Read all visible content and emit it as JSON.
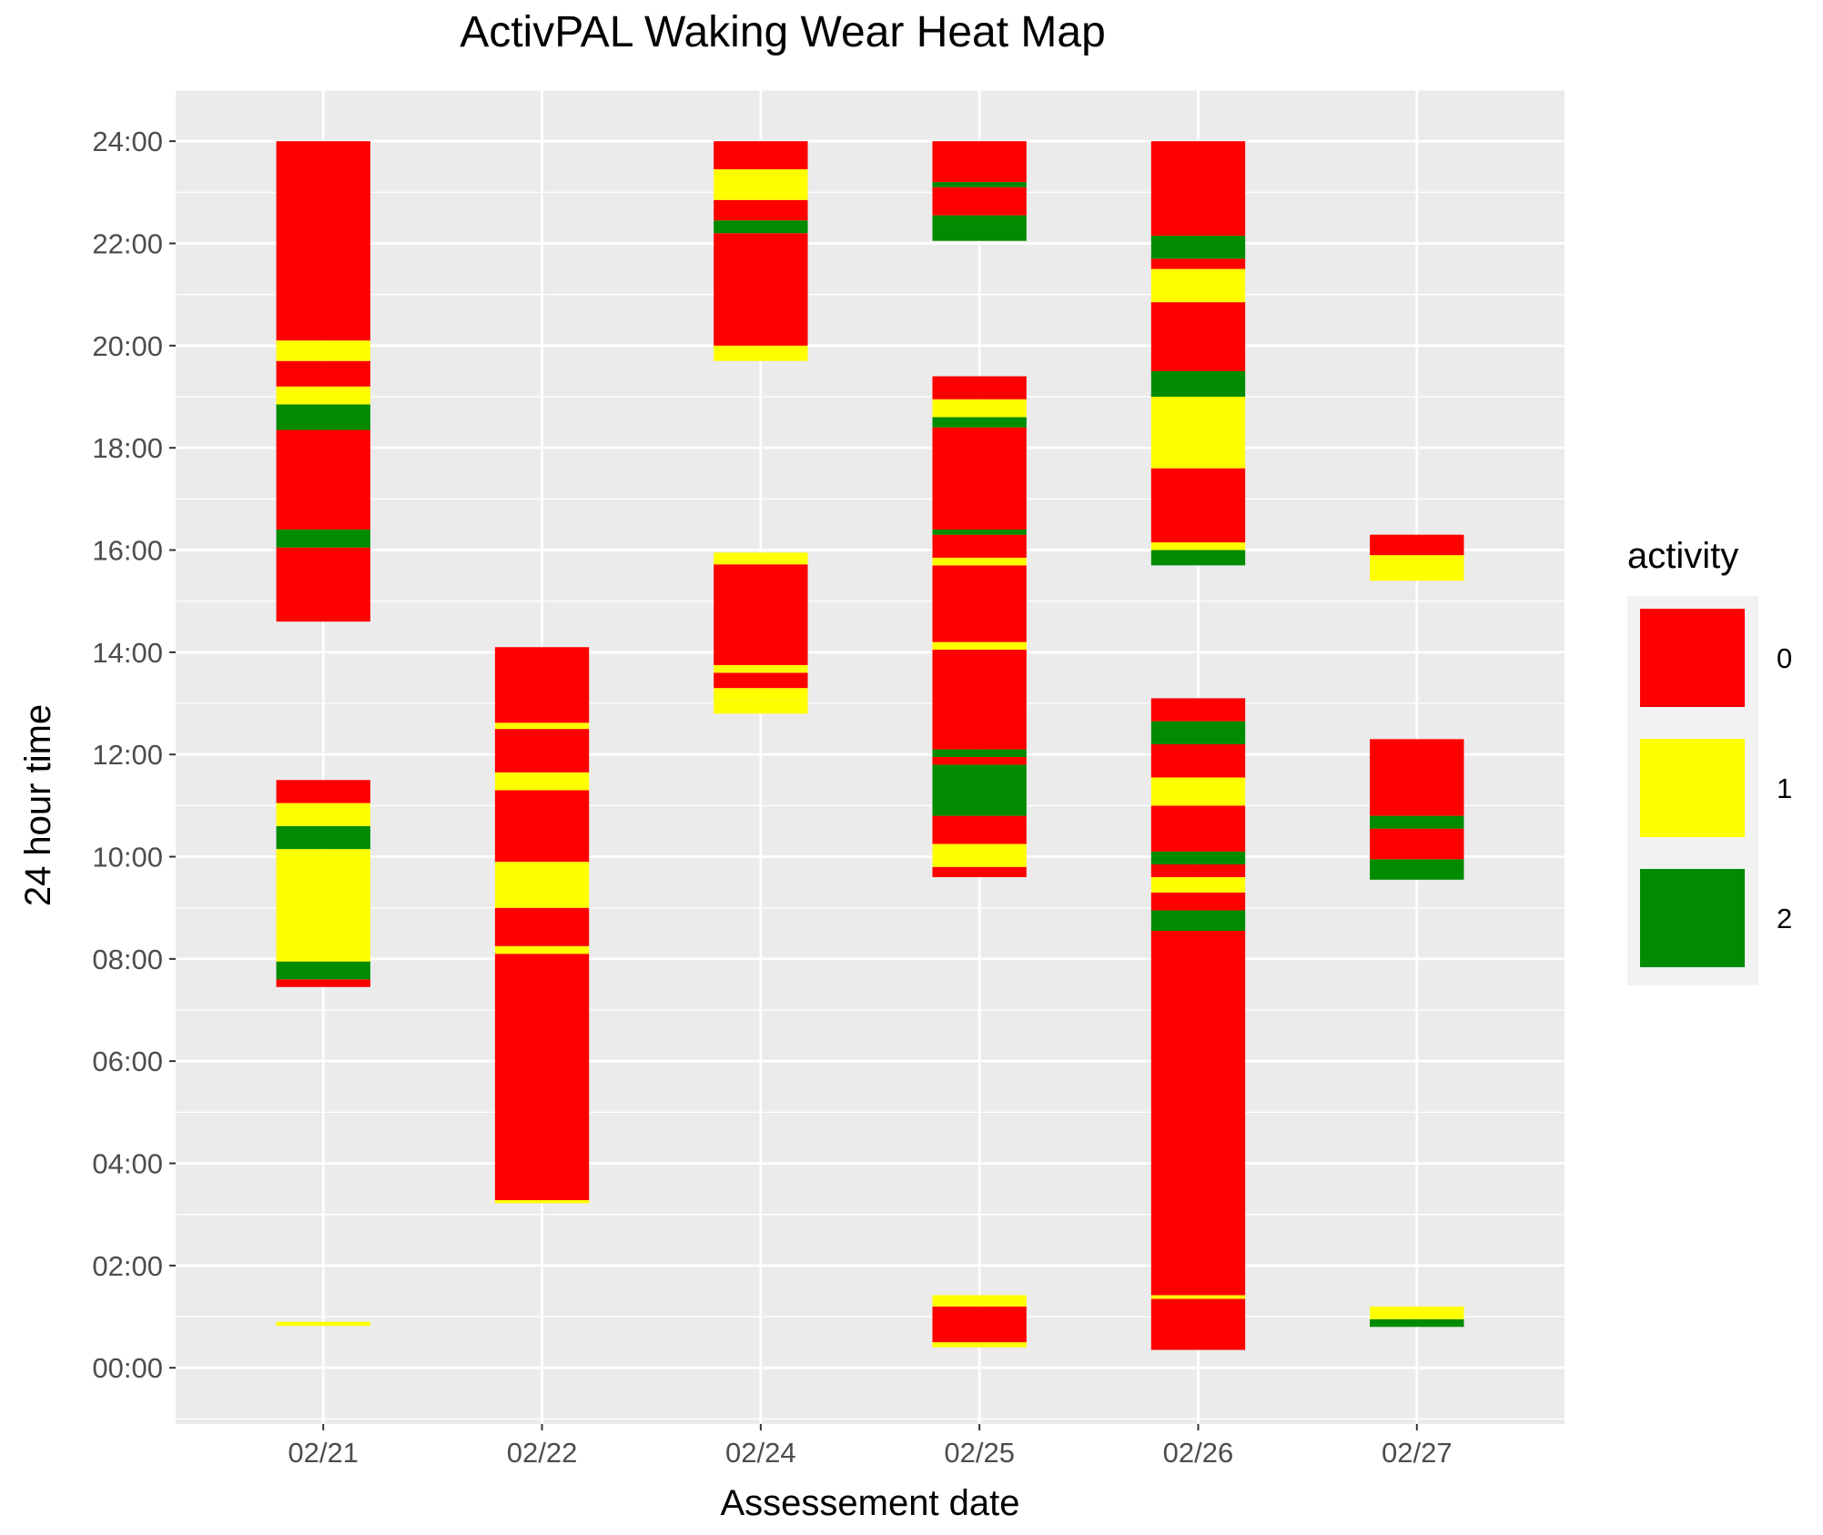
{
  "chart_data": {
    "type": "heatmap",
    "title": "ActivPAL Waking Wear Heat Map",
    "xlabel": "Assessement date",
    "ylabel": "24 hour time",
    "categories": [
      "02/21",
      "02/22",
      "02/24",
      "02/25",
      "02/26",
      "02/27"
    ],
    "y_ticks": [
      "00:00",
      "02:00",
      "04:00",
      "06:00",
      "08:00",
      "10:00",
      "12:00",
      "14:00",
      "16:00",
      "18:00",
      "20:00",
      "22:00",
      "24:00"
    ],
    "ylim_hours": [
      -1.1,
      25.0
    ],
    "grid": true,
    "legend": {
      "title": "activity",
      "position": "right",
      "entries": [
        {
          "label": "0",
          "color": "#FF0000"
        },
        {
          "label": "1",
          "color": "#FFFF00"
        },
        {
          "label": "2",
          "color": "#008B00"
        }
      ]
    },
    "segments": {
      "02/21": [
        {
          "start": 0.82,
          "end": 0.9,
          "activity": 1
        },
        {
          "start": 7.45,
          "end": 7.6,
          "activity": 0
        },
        {
          "start": 7.6,
          "end": 7.95,
          "activity": 2
        },
        {
          "start": 7.95,
          "end": 10.15,
          "activity": 1
        },
        {
          "start": 10.15,
          "end": 10.6,
          "activity": 2
        },
        {
          "start": 10.6,
          "end": 11.05,
          "activity": 1
        },
        {
          "start": 11.05,
          "end": 11.5,
          "activity": 0
        },
        {
          "start": 14.6,
          "end": 16.05,
          "activity": 0
        },
        {
          "start": 16.05,
          "end": 16.4,
          "activity": 2
        },
        {
          "start": 16.4,
          "end": 18.35,
          "activity": 0
        },
        {
          "start": 18.35,
          "end": 18.85,
          "activity": 2
        },
        {
          "start": 18.85,
          "end": 19.2,
          "activity": 1
        },
        {
          "start": 19.2,
          "end": 19.7,
          "activity": 0
        },
        {
          "start": 19.7,
          "end": 20.1,
          "activity": 1
        },
        {
          "start": 20.1,
          "end": 24.0,
          "activity": 0
        }
      ],
      "02/22": [
        {
          "start": 3.22,
          "end": 3.28,
          "activity": 1
        },
        {
          "start": 3.28,
          "end": 8.1,
          "activity": 0
        },
        {
          "start": 8.1,
          "end": 8.25,
          "activity": 1
        },
        {
          "start": 8.25,
          "end": 9.0,
          "activity": 0
        },
        {
          "start": 9.0,
          "end": 9.9,
          "activity": 1
        },
        {
          "start": 9.9,
          "end": 11.3,
          "activity": 0
        },
        {
          "start": 11.3,
          "end": 11.65,
          "activity": 1
        },
        {
          "start": 11.65,
          "end": 12.5,
          "activity": 0
        },
        {
          "start": 12.5,
          "end": 12.62,
          "activity": 1
        },
        {
          "start": 12.62,
          "end": 14.1,
          "activity": 0
        }
      ],
      "02/24": [
        {
          "start": 12.8,
          "end": 13.05,
          "activity": 1
        },
        {
          "start": 13.05,
          "end": 13.3,
          "activity": 1
        },
        {
          "start": 13.3,
          "end": 13.6,
          "activity": 0
        },
        {
          "start": 13.6,
          "end": 13.75,
          "activity": 1
        },
        {
          "start": 13.75,
          "end": 15.72,
          "activity": 0
        },
        {
          "start": 15.72,
          "end": 15.95,
          "activity": 1
        },
        {
          "start": 19.7,
          "end": 20.0,
          "activity": 1
        },
        {
          "start": 20.0,
          "end": 22.2,
          "activity": 0
        },
        {
          "start": 22.2,
          "end": 22.45,
          "activity": 2
        },
        {
          "start": 22.45,
          "end": 22.85,
          "activity": 0
        },
        {
          "start": 22.85,
          "end": 23.45,
          "activity": 1
        },
        {
          "start": 23.45,
          "end": 24.0,
          "activity": 0
        }
      ],
      "02/25": [
        {
          "start": 0.4,
          "end": 0.5,
          "activity": 1
        },
        {
          "start": 0.5,
          "end": 1.2,
          "activity": 0
        },
        {
          "start": 1.2,
          "end": 1.42,
          "activity": 1
        },
        {
          "start": 9.6,
          "end": 9.8,
          "activity": 0
        },
        {
          "start": 9.8,
          "end": 10.25,
          "activity": 1
        },
        {
          "start": 10.25,
          "end": 10.8,
          "activity": 0
        },
        {
          "start": 10.8,
          "end": 11.8,
          "activity": 2
        },
        {
          "start": 11.8,
          "end": 11.95,
          "activity": 0
        },
        {
          "start": 11.95,
          "end": 12.1,
          "activity": 2
        },
        {
          "start": 12.1,
          "end": 14.05,
          "activity": 0
        },
        {
          "start": 14.05,
          "end": 14.2,
          "activity": 1
        },
        {
          "start": 14.2,
          "end": 15.7,
          "activity": 0
        },
        {
          "start": 15.7,
          "end": 15.85,
          "activity": 1
        },
        {
          "start": 15.85,
          "end": 16.3,
          "activity": 0
        },
        {
          "start": 16.3,
          "end": 16.4,
          "activity": 2
        },
        {
          "start": 16.4,
          "end": 18.4,
          "activity": 0
        },
        {
          "start": 18.4,
          "end": 18.6,
          "activity": 2
        },
        {
          "start": 18.6,
          "end": 18.95,
          "activity": 1
        },
        {
          "start": 18.95,
          "end": 19.4,
          "activity": 0
        },
        {
          "start": 22.05,
          "end": 22.55,
          "activity": 2
        },
        {
          "start": 22.55,
          "end": 23.1,
          "activity": 0
        },
        {
          "start": 23.1,
          "end": 23.2,
          "activity": 2
        },
        {
          "start": 23.2,
          "end": 24.0,
          "activity": 0
        }
      ],
      "02/26": [
        {
          "start": 0.35,
          "end": 1.35,
          "activity": 0
        },
        {
          "start": 1.35,
          "end": 1.42,
          "activity": 1
        },
        {
          "start": 1.42,
          "end": 8.55,
          "activity": 0
        },
        {
          "start": 8.55,
          "end": 8.95,
          "activity": 2
        },
        {
          "start": 8.95,
          "end": 9.3,
          "activity": 0
        },
        {
          "start": 9.3,
          "end": 9.6,
          "activity": 1
        },
        {
          "start": 9.6,
          "end": 9.85,
          "activity": 0
        },
        {
          "start": 9.85,
          "end": 10.1,
          "activity": 2
        },
        {
          "start": 10.1,
          "end": 11.0,
          "activity": 0
        },
        {
          "start": 11.0,
          "end": 11.55,
          "activity": 1
        },
        {
          "start": 11.55,
          "end": 12.2,
          "activity": 0
        },
        {
          "start": 12.2,
          "end": 12.65,
          "activity": 2
        },
        {
          "start": 12.65,
          "end": 13.1,
          "activity": 0
        },
        {
          "start": 15.7,
          "end": 16.0,
          "activity": 2
        },
        {
          "start": 16.0,
          "end": 16.15,
          "activity": 1
        },
        {
          "start": 16.15,
          "end": 17.6,
          "activity": 0
        },
        {
          "start": 17.6,
          "end": 19.0,
          "activity": 1
        },
        {
          "start": 19.0,
          "end": 19.5,
          "activity": 2
        },
        {
          "start": 19.5,
          "end": 20.85,
          "activity": 0
        },
        {
          "start": 20.85,
          "end": 21.5,
          "activity": 1
        },
        {
          "start": 21.5,
          "end": 21.7,
          "activity": 0
        },
        {
          "start": 21.7,
          "end": 22.15,
          "activity": 2
        },
        {
          "start": 22.15,
          "end": 24.0,
          "activity": 0
        }
      ],
      "02/27": [
        {
          "start": 0.8,
          "end": 0.95,
          "activity": 2
        },
        {
          "start": 0.95,
          "end": 1.2,
          "activity": 1
        },
        {
          "start": 9.55,
          "end": 9.95,
          "activity": 2
        },
        {
          "start": 9.95,
          "end": 10.55,
          "activity": 0
        },
        {
          "start": 10.55,
          "end": 10.8,
          "activity": 2
        },
        {
          "start": 10.8,
          "end": 12.3,
          "activity": 0
        },
        {
          "start": 15.4,
          "end": 15.9,
          "activity": 1
        },
        {
          "start": 15.9,
          "end": 16.3,
          "activity": 0
        }
      ]
    }
  }
}
